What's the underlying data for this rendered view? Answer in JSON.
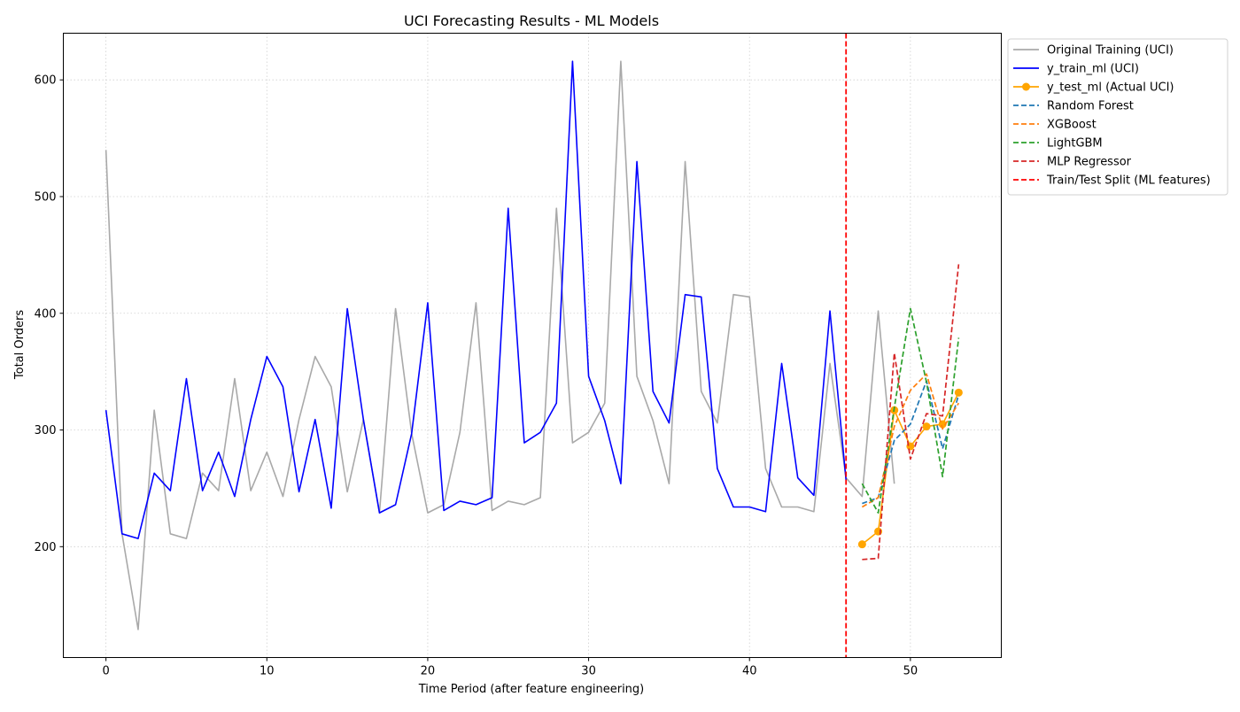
{
  "chart_data": {
    "type": "line",
    "title": "UCI Forecasting Results - ML Models",
    "xlabel": "Time Period (after feature engineering)",
    "ylabel": "Total Orders",
    "xlim": [
      -2.65,
      55.65
    ],
    "ylim": [
      105,
      640
    ],
    "xticks": [
      0,
      10,
      20,
      30,
      40,
      50
    ],
    "yticks": [
      200,
      300,
      400,
      500,
      600
    ],
    "grid": true,
    "legend_position": "outside-top-right",
    "vline": {
      "x": 46,
      "color": "#ff0000",
      "label": "Train/Test Split (ML features)"
    },
    "series": [
      {
        "name": "Original Training (UCI)",
        "color": "#a9a9a9",
        "dash": false,
        "marker": false,
        "x": [
          0,
          1,
          2,
          3,
          4,
          5,
          6,
          7,
          8,
          9,
          10,
          11,
          12,
          13,
          14,
          15,
          16,
          17,
          18,
          19,
          20,
          21,
          22,
          23,
          24,
          25,
          26,
          27,
          28,
          29,
          30,
          31,
          32,
          33,
          34,
          35,
          36,
          37,
          38,
          39,
          40,
          41,
          42,
          43,
          44,
          45,
          46,
          47,
          48,
          49
        ],
        "y": [
          540,
          211,
          129,
          317,
          211,
          207,
          263,
          248,
          344,
          248,
          281,
          243,
          309,
          363,
          337,
          247,
          309,
          229,
          404,
          297,
          229,
          236,
          298,
          409,
          231,
          239,
          236,
          242,
          490,
          289,
          298,
          323,
          616,
          346,
          308,
          254,
          530,
          333,
          306,
          416,
          414,
          267,
          234,
          234,
          230,
          357,
          259,
          243,
          402,
          254
        ]
      },
      {
        "name": "y_train_ml (UCI)",
        "color": "#0000ff",
        "dash": false,
        "marker": false,
        "x": [
          0,
          1,
          2,
          3,
          4,
          5,
          6,
          7,
          8,
          9,
          10,
          11,
          12,
          13,
          14,
          15,
          16,
          17,
          18,
          19,
          20,
          21,
          22,
          23,
          24,
          25,
          26,
          27,
          28,
          29,
          30,
          31,
          32,
          33,
          34,
          35,
          36,
          37,
          38,
          39,
          40,
          41,
          42,
          43,
          44,
          45,
          46
        ],
        "y": [
          317,
          211,
          207,
          263,
          248,
          344,
          248,
          281,
          243,
          309,
          363,
          337,
          247,
          309,
          233,
          404,
          309,
          229,
          236,
          297,
          409,
          231,
          239,
          236,
          242,
          490,
          289,
          298,
          323,
          616,
          346,
          308,
          254,
          530,
          333,
          306,
          416,
          414,
          267,
          234,
          234,
          230,
          357,
          259,
          244,
          402,
          257
        ]
      },
      {
        "name": "y_test_ml (Actual UCI)",
        "color": "#ffa500",
        "dash": false,
        "marker": true,
        "x": [
          47,
          48,
          49,
          50,
          51,
          52,
          53
        ],
        "y": [
          202,
          213,
          317,
          286,
          303,
          305,
          332
        ]
      },
      {
        "name": "Random Forest",
        "color": "#1f77b4",
        "dash": true,
        "marker": false,
        "x": [
          47,
          48,
          49,
          50,
          51,
          52,
          53
        ],
        "y": [
          237,
          242,
          291,
          305,
          342,
          284,
          330
        ]
      },
      {
        "name": "XGBoost",
        "color": "#ff7f0e",
        "dash": true,
        "marker": false,
        "x": [
          47,
          48,
          49,
          50,
          51,
          52,
          53
        ],
        "y": [
          234,
          242,
          303,
          334,
          348,
          301,
          323
        ]
      },
      {
        "name": "LightGBM",
        "color": "#2ca02c",
        "dash": true,
        "marker": false,
        "x": [
          47,
          48,
          49,
          50,
          51,
          52,
          53
        ],
        "y": [
          254,
          229,
          319,
          404,
          341,
          260,
          379
        ]
      },
      {
        "name": "MLP Regressor",
        "color": "#d62728",
        "dash": true,
        "marker": false,
        "x": [
          47,
          48,
          49,
          50,
          51,
          52,
          53
        ],
        "y": [
          189,
          190,
          366,
          275,
          314,
          312,
          442
        ]
      }
    ]
  }
}
